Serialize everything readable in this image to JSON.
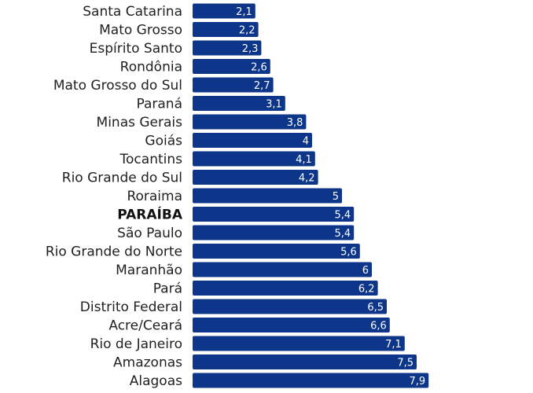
{
  "chart_data": {
    "type": "bar",
    "orientation": "horizontal",
    "categories": [
      "Santa Catarina",
      "Mato Grosso",
      "Espírito Santo",
      "Rondônia",
      "Mato Grosso do Sul",
      "Paraná",
      "Minas Gerais",
      "Goiás",
      "Tocantins",
      "Rio Grande do Sul",
      "Roraima",
      "PARAÍBA",
      "São Paulo",
      "Rio Grande do Norte",
      "Maranhão",
      "Pará",
      "Distrito Federal",
      "Acre/Ceará",
      "Rio de Janeiro",
      "Amazonas",
      "Alagoas"
    ],
    "values": [
      2.1,
      2.2,
      2.3,
      2.6,
      2.7,
      3.1,
      3.8,
      4,
      4.1,
      4.2,
      5,
      5.4,
      5.4,
      5.6,
      6,
      6.2,
      6.5,
      6.6,
      7.1,
      7.5,
      7.9
    ],
    "value_labels": [
      "2,1",
      "2,2",
      "2,3",
      "2,6",
      "2,7",
      "3,1",
      "3,8",
      "4",
      "4,1",
      "4,2",
      "5",
      "5,4",
      "5,4",
      "5,6",
      "6",
      "6,2",
      "6,5",
      "6,6",
      "7,1",
      "7,5",
      "7,9"
    ],
    "highlight_category": "PARAÍBA",
    "xlim": [
      0,
      8
    ],
    "grid": false,
    "legend": "none",
    "bar_color": "#0d3589",
    "value_label_color": "#ffffff",
    "title": "",
    "xlabel": "",
    "ylabel": ""
  }
}
